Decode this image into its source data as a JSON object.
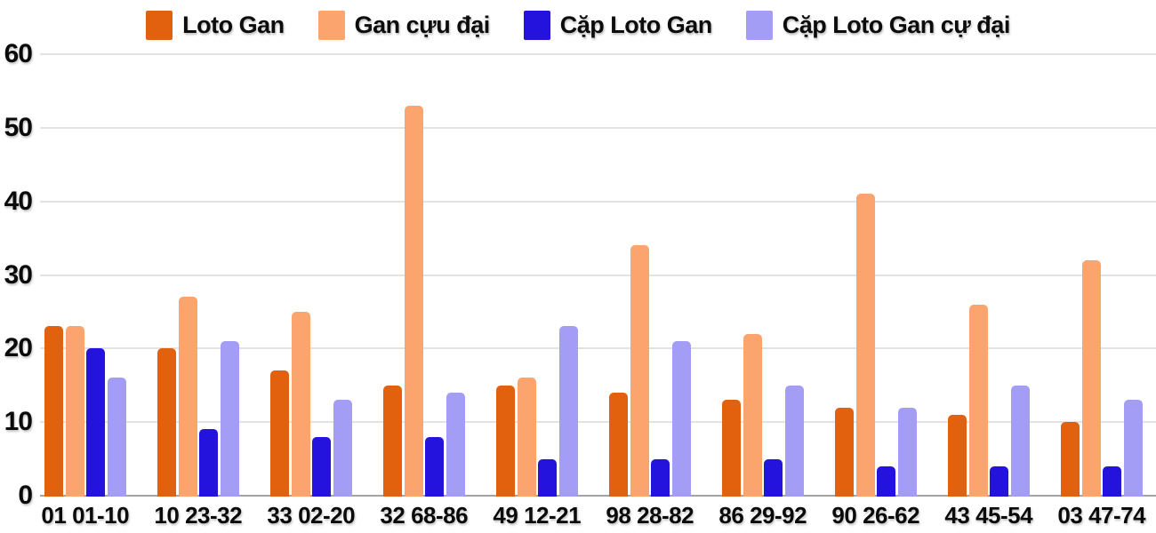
{
  "chart_data": {
    "type": "bar",
    "categories": [
      "01 01-10",
      "10 23-32",
      "33 02-20",
      "32 68-86",
      "49 12-21",
      "98 28-82",
      "86 29-92",
      "90 26-62",
      "43 45-54",
      "03 47-74"
    ],
    "series": [
      {
        "name": "Loto Gan",
        "color": "#e2610e",
        "values": [
          23,
          20,
          17,
          15,
          15,
          14,
          13,
          12,
          11,
          10
        ]
      },
      {
        "name": "Gan cựu đại",
        "color": "#fca46e",
        "values": [
          23,
          27,
          25,
          53,
          16,
          34,
          22,
          41,
          26,
          32
        ]
      },
      {
        "name": "Cặp Loto Gan",
        "color": "#2413dc",
        "values": [
          20,
          9,
          8,
          8,
          5,
          5,
          5,
          4,
          4,
          4
        ]
      },
      {
        "name": "Cặp Loto Gan cự đại",
        "color": "#a49df6",
        "values": [
          16,
          21,
          13,
          14,
          23,
          21,
          15,
          12,
          15,
          13
        ]
      }
    ],
    "yticks": [
      0,
      10,
      20,
      30,
      40,
      50,
      60
    ],
    "ylim": [
      0,
      60
    ],
    "grid": true,
    "legend_position": "top"
  },
  "colors": {
    "background": "#ffffff",
    "gridline": "#e3e3e3",
    "axis_line": "#a3a3a3",
    "text": "#0b0b0b"
  }
}
